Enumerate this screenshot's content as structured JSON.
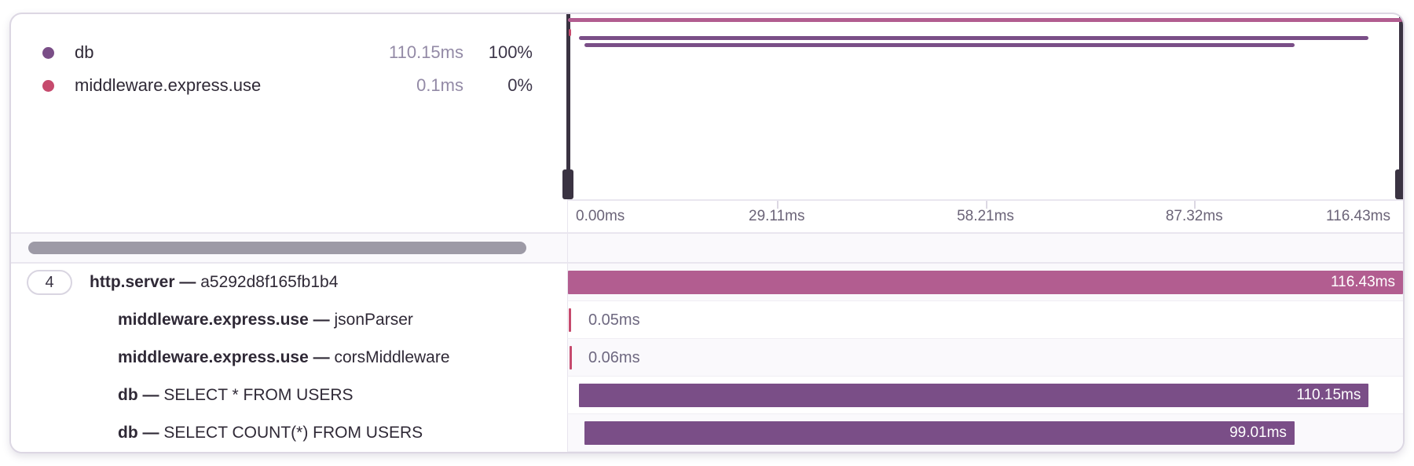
{
  "colors": {
    "http_server": "#b25d90",
    "db": "#7a4e87",
    "middleware": "#c64a6d",
    "handle": "#3a3342"
  },
  "trace": {
    "total_ms": 116.43
  },
  "legend": {
    "items": [
      {
        "op": "db",
        "duration": "110.15ms",
        "percent": "100%",
        "color_key": "db"
      },
      {
        "op": "middleware.express.use",
        "duration": "0.1ms",
        "percent": "0%",
        "color_key": "middleware"
      }
    ]
  },
  "minimap": {
    "spans": [
      {
        "op": "http.server",
        "start_ms": 0,
        "duration_ms": 116.43,
        "color_key": "http_server"
      },
      {
        "op": "middleware.express.use",
        "start_ms": 0.15,
        "duration_ms": 0.11,
        "color_key": "middleware"
      },
      {
        "op": "db",
        "start_ms": 1.5,
        "duration_ms": 110.15,
        "color_key": "db"
      },
      {
        "op": "db",
        "start_ms": 2.3,
        "duration_ms": 99.01,
        "color_key": "db"
      }
    ]
  },
  "axis": {
    "ticks": [
      "0.00ms",
      "29.11ms",
      "58.21ms",
      "87.32ms",
      "116.43ms"
    ]
  },
  "spans": [
    {
      "badge": "4",
      "op": "http.server",
      "separator": "—",
      "description": "a5292d8f165fb1b4",
      "duration_label": "116.43ms",
      "start_ms": 0,
      "duration_ms": 116.43,
      "color_key": "http_server",
      "label_inside": true,
      "depth": 0
    },
    {
      "badge": null,
      "op": "middleware.express.use",
      "separator": "—",
      "description": "jsonParser",
      "duration_label": "0.05ms",
      "start_ms": 0.15,
      "duration_ms": 0.05,
      "color_key": "middleware",
      "label_inside": false,
      "depth": 1
    },
    {
      "badge": null,
      "op": "middleware.express.use",
      "separator": "—",
      "description": "corsMiddleware",
      "duration_label": "0.06ms",
      "start_ms": 0.2,
      "duration_ms": 0.06,
      "color_key": "middleware",
      "label_inside": false,
      "depth": 1
    },
    {
      "badge": null,
      "op": "db",
      "separator": "—",
      "description": "SELECT * FROM USERS",
      "duration_label": "110.15ms",
      "start_ms": 1.5,
      "duration_ms": 110.15,
      "color_key": "db",
      "label_inside": true,
      "depth": 1
    },
    {
      "badge": null,
      "op": "db",
      "separator": "—",
      "description": "SELECT COUNT(*) FROM USERS",
      "duration_label": "99.01ms",
      "start_ms": 2.3,
      "duration_ms": 99.01,
      "color_key": "db",
      "label_inside": true,
      "depth": 1
    }
  ]
}
